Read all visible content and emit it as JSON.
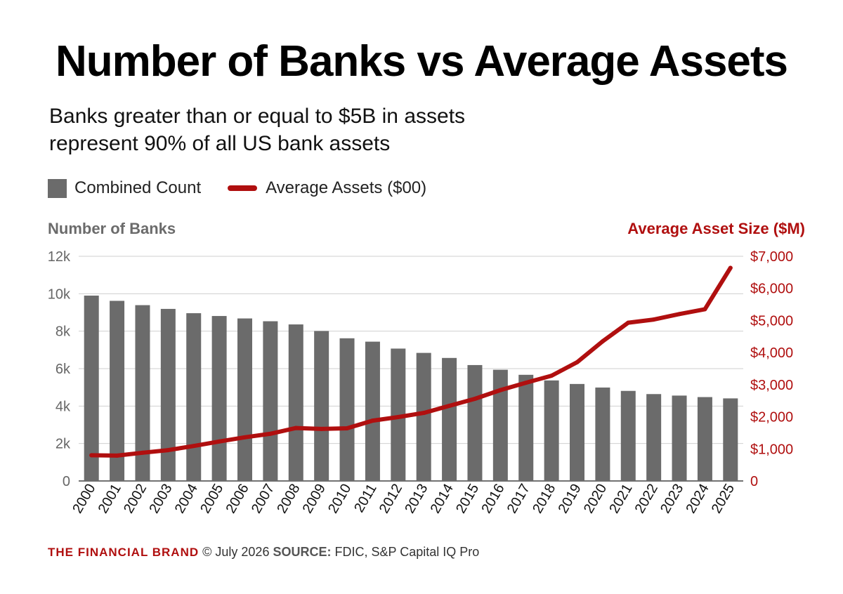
{
  "header": {
    "title": "Number of Banks vs Average Assets",
    "subtitle_line1": "Banks greater than or equal to $5B in assets",
    "subtitle_line2": "represent 90% of all US bank assets"
  },
  "legend": {
    "count_label": "Combined Count",
    "assets_label": "Average Assets ($00)"
  },
  "axes": {
    "left_title": "Number of Banks",
    "right_title": "Average Asset Size ($M)"
  },
  "footer": {
    "brand": "THE FINANCIAL BRAND",
    "copyright": "© July 2026",
    "source_label": "SOURCE:",
    "source_text": "FDIC, S&P Capital IQ Pro"
  },
  "colors": {
    "bar": "#6b6b6b",
    "line": "#b00f0f",
    "grid": "#cfcfcf"
  },
  "chart_data": {
    "type": "bar",
    "categories": [
      "2000",
      "2001",
      "2002",
      "2003",
      "2004",
      "2005",
      "2006",
      "2007",
      "2008",
      "2009",
      "2010",
      "2011",
      "2012",
      "2013",
      "2014",
      "2015",
      "2016",
      "2017",
      "2018",
      "2019",
      "2020",
      "2021",
      "2022",
      "2023",
      "2024",
      "2025"
    ],
    "series": [
      {
        "name": "Combined Count",
        "type": "bar",
        "axis": "left",
        "values": [
          9900,
          9620,
          9390,
          9190,
          8960,
          8810,
          8680,
          8530,
          8360,
          8010,
          7620,
          7440,
          7070,
          6840,
          6570,
          6190,
          5940,
          5670,
          5370,
          5180,
          4990,
          4810,
          4640,
          4560,
          4480,
          4410
        ]
      },
      {
        "name": "Average Assets ($00)",
        "type": "line",
        "axis": "right",
        "values": [
          800,
          790,
          880,
          960,
          1090,
          1230,
          1360,
          1470,
          1650,
          1620,
          1640,
          1880,
          1990,
          2120,
          2340,
          2560,
          2830,
          3060,
          3280,
          3700,
          4350,
          4930,
          5030,
          5200,
          5350,
          6640
        ]
      }
    ],
    "left_axis": {
      "ylim": [
        0,
        12000
      ],
      "ticks": [
        0,
        2000,
        4000,
        6000,
        8000,
        10000,
        12000
      ],
      "tick_labels": [
        "0",
        "2k",
        "4k",
        "6k",
        "8k",
        "10k",
        "12k"
      ]
    },
    "right_axis": {
      "ylim": [
        0,
        7000
      ],
      "ticks": [
        0,
        1000,
        2000,
        3000,
        4000,
        5000,
        6000,
        7000
      ],
      "tick_labels": [
        "0",
        "$1,000",
        "$2,000",
        "$3,000",
        "$4,000",
        "$5,000",
        "$6,000",
        "$7,000"
      ]
    },
    "grid": true,
    "legend_position": "top-left"
  }
}
